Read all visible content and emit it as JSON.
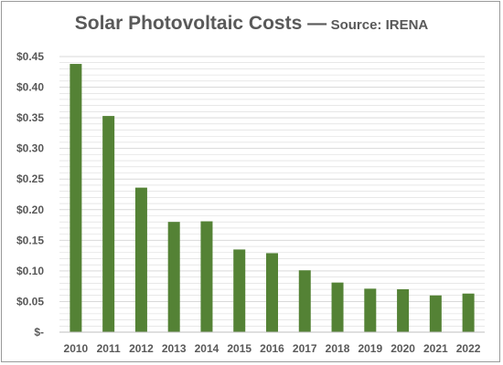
{
  "chart_data": {
    "type": "bar",
    "title": "Solar Photovoltaic Costs —",
    "subtitle": "Source: IRENA",
    "xlabel": "",
    "ylabel": "",
    "categories": [
      "2010",
      "2011",
      "2012",
      "2013",
      "2014",
      "2015",
      "2016",
      "2017",
      "2018",
      "2019",
      "2020",
      "2021",
      "2022"
    ],
    "values": [
      0.438,
      0.353,
      0.236,
      0.18,
      0.181,
      0.135,
      0.129,
      0.101,
      0.081,
      0.071,
      0.07,
      0.06,
      0.063
    ],
    "ylim": [
      0,
      0.45
    ],
    "ytick_labels": [
      "$-",
      "$0.05",
      "$0.10",
      "$0.15",
      "$0.20",
      "$0.25",
      "$0.30",
      "$0.35",
      "$0.40",
      "$0.45"
    ],
    "ytick_values": [
      0,
      0.05,
      0.1,
      0.15,
      0.2,
      0.25,
      0.3,
      0.35,
      0.4,
      0.45
    ],
    "grid": true,
    "bar_color": "#548235",
    "grid_color": "#d9d9d9"
  }
}
